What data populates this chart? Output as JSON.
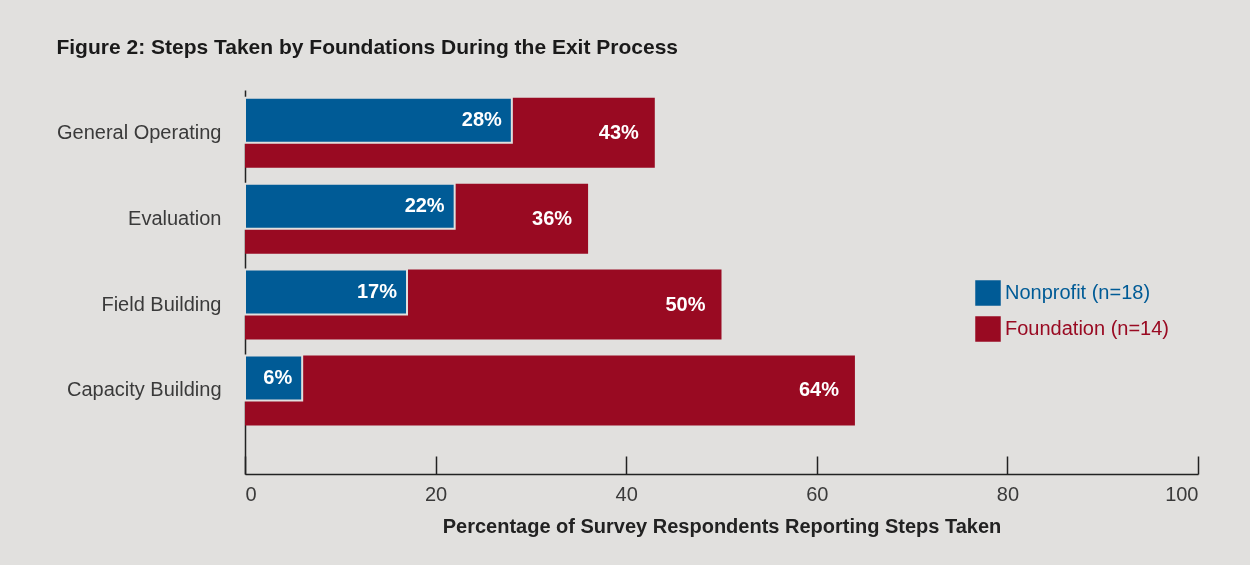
{
  "chart_data": {
    "type": "bar",
    "orientation": "horizontal",
    "title": "Figure 2: Steps Taken by Foundations During the Exit Process",
    "xlabel": "Percentage of Survey Respondents Reporting Steps Taken",
    "categories": [
      "General Operating",
      "Evaluation",
      "Field Building",
      "Capacity Building"
    ],
    "series": [
      {
        "name": "Nonprofit (n=18)",
        "color": "#005b96",
        "values": [
          28,
          22,
          17,
          6
        ],
        "value_labels": [
          "28%",
          "22%",
          "17%",
          "6%"
        ]
      },
      {
        "name": "Foundation (n=14)",
        "color": "#990a22",
        "values": [
          43,
          36,
          50,
          64
        ],
        "value_labels": [
          "43%",
          "36%",
          "50%",
          "64%"
        ]
      }
    ],
    "xlim": [
      0,
      100
    ],
    "xticks": [
      0,
      20,
      40,
      60,
      80,
      100
    ],
    "legend": "right"
  }
}
